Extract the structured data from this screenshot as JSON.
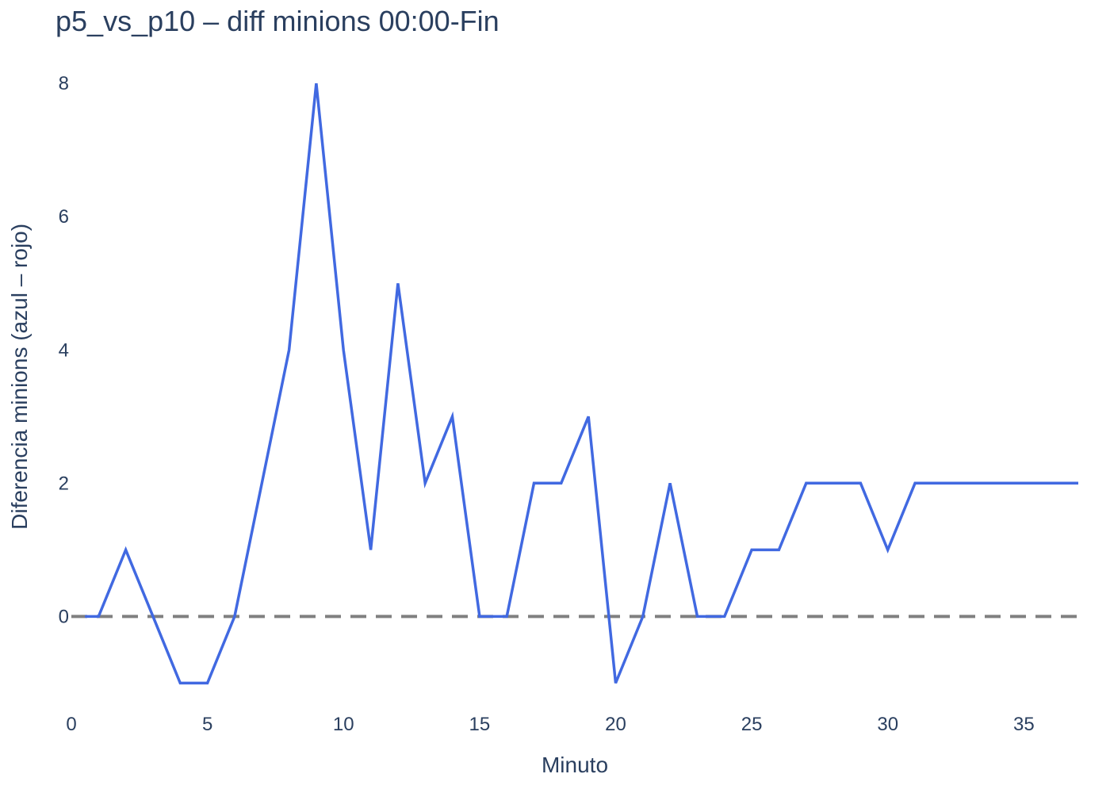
{
  "chart_data": {
    "type": "line",
    "title": "p5_vs_p10 – diff minions 00:00-Fin",
    "xlabel": "Minuto",
    "ylabel": "Diferencia minions (azul – rojo)",
    "xlim": [
      0,
      37
    ],
    "ylim": [
      -1.4,
      8.3
    ],
    "xticks": [
      0,
      5,
      10,
      15,
      20,
      25,
      30,
      35
    ],
    "yticks": [
      0,
      2,
      4,
      6,
      8
    ],
    "grid": false,
    "reference_line": {
      "y": 0,
      "style": "dashed",
      "color": "#808080"
    },
    "series": [
      {
        "color": "#4169e1",
        "x": [
          0.5,
          1,
          2,
          3,
          4,
          5,
          6,
          7,
          8,
          9,
          10,
          11,
          12,
          13,
          14,
          15,
          16,
          17,
          18,
          19,
          20,
          21,
          22,
          23,
          24,
          25,
          26,
          27,
          28,
          29,
          30,
          31,
          32,
          33,
          34,
          35,
          36,
          37
        ],
        "y": [
          0,
          0,
          1,
          0,
          -1,
          -1,
          0,
          2,
          4,
          8,
          4,
          1,
          5,
          2,
          3,
          0,
          0,
          2,
          2,
          3,
          -1,
          0,
          2,
          0,
          0,
          1,
          1,
          2,
          2,
          2,
          1,
          2,
          2,
          2,
          2,
          2,
          2,
          2
        ]
      }
    ]
  }
}
